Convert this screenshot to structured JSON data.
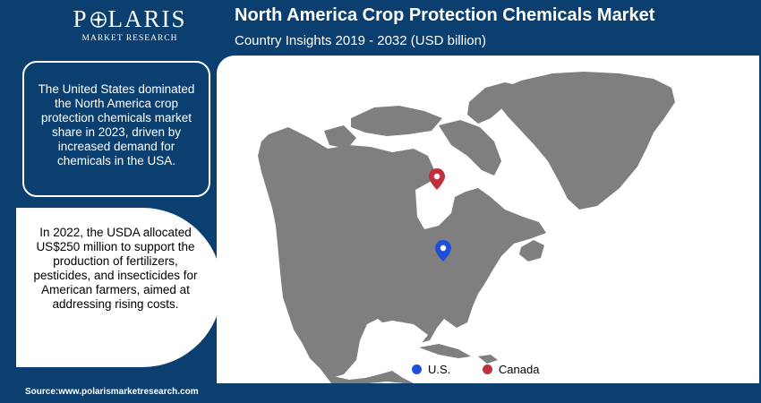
{
  "header": {
    "logo_name_left": "P",
    "logo_name_right": "LARIS",
    "logo_sub": "MARKET RESEARCH",
    "title": "North America Crop Protection Chemicals Market",
    "subtitle": "Country Insights 2019 - 2032 (USD billion)"
  },
  "insights": {
    "card_1": "The United States dominated the North America crop protection chemicals market share in 2023, driven by increased demand for chemicals in the USA.",
    "card_2": "In 2022, the USDA allocated US$250 million to support the production of fertilizers, pesticides, and insecticides for American farmers, aimed at addressing rising costs."
  },
  "map": {
    "land_color": "#7f7f7f",
    "markers": [
      {
        "name": "Canada",
        "color": "#c0313f",
        "icon": "map-pin-icon"
      },
      {
        "name": "U.S.",
        "color": "#1f4fd8",
        "icon": "map-pin-icon"
      }
    ]
  },
  "legend": [
    {
      "label": "U.S.",
      "color": "#1f4fd8"
    },
    {
      "label": "Canada",
      "color": "#c0313f"
    }
  ],
  "footer": {
    "source": "Source:www.polarismarketresearch.com"
  },
  "colors": {
    "brand": "#0b3f6f",
    "canada": "#c0313f",
    "us": "#1f4fd8"
  }
}
